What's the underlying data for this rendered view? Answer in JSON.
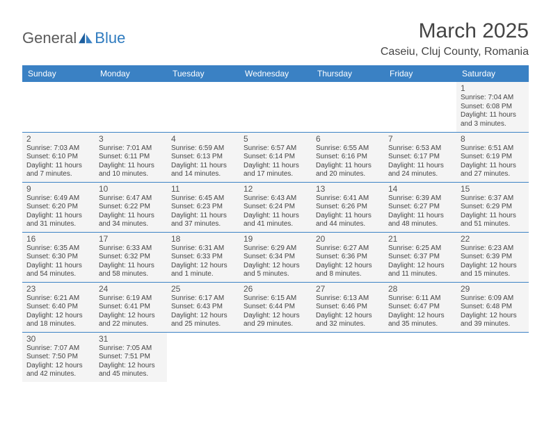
{
  "logo": {
    "textA": "General",
    "textB": "Blue"
  },
  "title": "March 2025",
  "location": "Caseiu, Cluj County, Romania",
  "weekdays": [
    "Sunday",
    "Monday",
    "Tuesday",
    "Wednesday",
    "Thursday",
    "Friday",
    "Saturday"
  ],
  "colors": {
    "header_bg": "#3a81c4",
    "header_fg": "#ffffff",
    "cell_bg": "#f4f4f4",
    "border": "#3a81c4",
    "logo_blue": "#2f7bbf",
    "logo_gray": "#5a5a5a"
  },
  "rows": [
    [
      {
        "empty": true
      },
      {
        "empty": true
      },
      {
        "empty": true
      },
      {
        "empty": true
      },
      {
        "empty": true
      },
      {
        "empty": true
      },
      {
        "day": "1",
        "sunrise": "Sunrise: 7:04 AM",
        "sunset": "Sunset: 6:08 PM",
        "dayl1": "Daylight: 11 hours",
        "dayl2": "and 3 minutes."
      }
    ],
    [
      {
        "day": "2",
        "sunrise": "Sunrise: 7:03 AM",
        "sunset": "Sunset: 6:10 PM",
        "dayl1": "Daylight: 11 hours",
        "dayl2": "and 7 minutes."
      },
      {
        "day": "3",
        "sunrise": "Sunrise: 7:01 AM",
        "sunset": "Sunset: 6:11 PM",
        "dayl1": "Daylight: 11 hours",
        "dayl2": "and 10 minutes."
      },
      {
        "day": "4",
        "sunrise": "Sunrise: 6:59 AM",
        "sunset": "Sunset: 6:13 PM",
        "dayl1": "Daylight: 11 hours",
        "dayl2": "and 14 minutes."
      },
      {
        "day": "5",
        "sunrise": "Sunrise: 6:57 AM",
        "sunset": "Sunset: 6:14 PM",
        "dayl1": "Daylight: 11 hours",
        "dayl2": "and 17 minutes."
      },
      {
        "day": "6",
        "sunrise": "Sunrise: 6:55 AM",
        "sunset": "Sunset: 6:16 PM",
        "dayl1": "Daylight: 11 hours",
        "dayl2": "and 20 minutes."
      },
      {
        "day": "7",
        "sunrise": "Sunrise: 6:53 AM",
        "sunset": "Sunset: 6:17 PM",
        "dayl1": "Daylight: 11 hours",
        "dayl2": "and 24 minutes."
      },
      {
        "day": "8",
        "sunrise": "Sunrise: 6:51 AM",
        "sunset": "Sunset: 6:19 PM",
        "dayl1": "Daylight: 11 hours",
        "dayl2": "and 27 minutes."
      }
    ],
    [
      {
        "day": "9",
        "sunrise": "Sunrise: 6:49 AM",
        "sunset": "Sunset: 6:20 PM",
        "dayl1": "Daylight: 11 hours",
        "dayl2": "and 31 minutes."
      },
      {
        "day": "10",
        "sunrise": "Sunrise: 6:47 AM",
        "sunset": "Sunset: 6:22 PM",
        "dayl1": "Daylight: 11 hours",
        "dayl2": "and 34 minutes."
      },
      {
        "day": "11",
        "sunrise": "Sunrise: 6:45 AM",
        "sunset": "Sunset: 6:23 PM",
        "dayl1": "Daylight: 11 hours",
        "dayl2": "and 37 minutes."
      },
      {
        "day": "12",
        "sunrise": "Sunrise: 6:43 AM",
        "sunset": "Sunset: 6:24 PM",
        "dayl1": "Daylight: 11 hours",
        "dayl2": "and 41 minutes."
      },
      {
        "day": "13",
        "sunrise": "Sunrise: 6:41 AM",
        "sunset": "Sunset: 6:26 PM",
        "dayl1": "Daylight: 11 hours",
        "dayl2": "and 44 minutes."
      },
      {
        "day": "14",
        "sunrise": "Sunrise: 6:39 AM",
        "sunset": "Sunset: 6:27 PM",
        "dayl1": "Daylight: 11 hours",
        "dayl2": "and 48 minutes."
      },
      {
        "day": "15",
        "sunrise": "Sunrise: 6:37 AM",
        "sunset": "Sunset: 6:29 PM",
        "dayl1": "Daylight: 11 hours",
        "dayl2": "and 51 minutes."
      }
    ],
    [
      {
        "day": "16",
        "sunrise": "Sunrise: 6:35 AM",
        "sunset": "Sunset: 6:30 PM",
        "dayl1": "Daylight: 11 hours",
        "dayl2": "and 54 minutes."
      },
      {
        "day": "17",
        "sunrise": "Sunrise: 6:33 AM",
        "sunset": "Sunset: 6:32 PM",
        "dayl1": "Daylight: 11 hours",
        "dayl2": "and 58 minutes."
      },
      {
        "day": "18",
        "sunrise": "Sunrise: 6:31 AM",
        "sunset": "Sunset: 6:33 PM",
        "dayl1": "Daylight: 12 hours",
        "dayl2": "and 1 minute."
      },
      {
        "day": "19",
        "sunrise": "Sunrise: 6:29 AM",
        "sunset": "Sunset: 6:34 PM",
        "dayl1": "Daylight: 12 hours",
        "dayl2": "and 5 minutes."
      },
      {
        "day": "20",
        "sunrise": "Sunrise: 6:27 AM",
        "sunset": "Sunset: 6:36 PM",
        "dayl1": "Daylight: 12 hours",
        "dayl2": "and 8 minutes."
      },
      {
        "day": "21",
        "sunrise": "Sunrise: 6:25 AM",
        "sunset": "Sunset: 6:37 PM",
        "dayl1": "Daylight: 12 hours",
        "dayl2": "and 11 minutes."
      },
      {
        "day": "22",
        "sunrise": "Sunrise: 6:23 AM",
        "sunset": "Sunset: 6:39 PM",
        "dayl1": "Daylight: 12 hours",
        "dayl2": "and 15 minutes."
      }
    ],
    [
      {
        "day": "23",
        "sunrise": "Sunrise: 6:21 AM",
        "sunset": "Sunset: 6:40 PM",
        "dayl1": "Daylight: 12 hours",
        "dayl2": "and 18 minutes."
      },
      {
        "day": "24",
        "sunrise": "Sunrise: 6:19 AM",
        "sunset": "Sunset: 6:41 PM",
        "dayl1": "Daylight: 12 hours",
        "dayl2": "and 22 minutes."
      },
      {
        "day": "25",
        "sunrise": "Sunrise: 6:17 AM",
        "sunset": "Sunset: 6:43 PM",
        "dayl1": "Daylight: 12 hours",
        "dayl2": "and 25 minutes."
      },
      {
        "day": "26",
        "sunrise": "Sunrise: 6:15 AM",
        "sunset": "Sunset: 6:44 PM",
        "dayl1": "Daylight: 12 hours",
        "dayl2": "and 29 minutes."
      },
      {
        "day": "27",
        "sunrise": "Sunrise: 6:13 AM",
        "sunset": "Sunset: 6:46 PM",
        "dayl1": "Daylight: 12 hours",
        "dayl2": "and 32 minutes."
      },
      {
        "day": "28",
        "sunrise": "Sunrise: 6:11 AM",
        "sunset": "Sunset: 6:47 PM",
        "dayl1": "Daylight: 12 hours",
        "dayl2": "and 35 minutes."
      },
      {
        "day": "29",
        "sunrise": "Sunrise: 6:09 AM",
        "sunset": "Sunset: 6:48 PM",
        "dayl1": "Daylight: 12 hours",
        "dayl2": "and 39 minutes."
      }
    ],
    [
      {
        "day": "30",
        "sunrise": "Sunrise: 7:07 AM",
        "sunset": "Sunset: 7:50 PM",
        "dayl1": "Daylight: 12 hours",
        "dayl2": "and 42 minutes."
      },
      {
        "day": "31",
        "sunrise": "Sunrise: 7:05 AM",
        "sunset": "Sunset: 7:51 PM",
        "dayl1": "Daylight: 12 hours",
        "dayl2": "and 45 minutes."
      },
      {
        "empty": true
      },
      {
        "empty": true
      },
      {
        "empty": true
      },
      {
        "empty": true
      },
      {
        "empty": true
      }
    ]
  ]
}
